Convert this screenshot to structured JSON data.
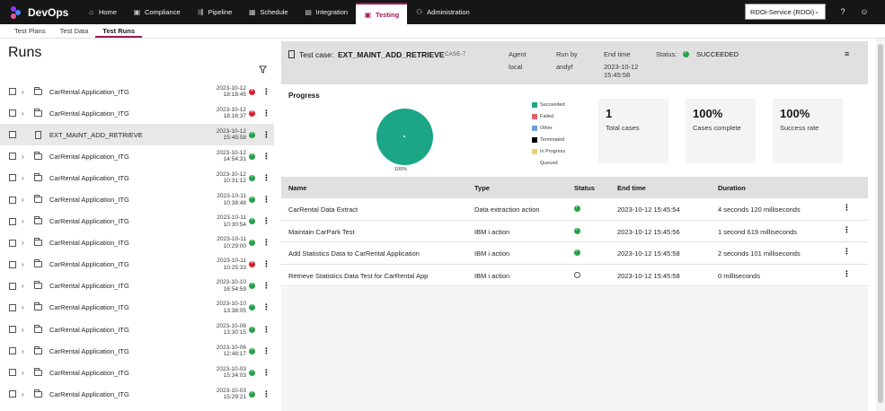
{
  "app": {
    "name": "DevOps"
  },
  "colors": {
    "topbar": "#161616",
    "accent": "#9f1853",
    "success": "#24a148",
    "failed": "#da1e28",
    "pie": "#1ba686"
  },
  "topnav": {
    "items": [
      {
        "label": "Home",
        "icon": "home-icon"
      },
      {
        "label": "Compliance",
        "icon": "compliance-icon"
      },
      {
        "label": "Pipeline",
        "icon": "pipeline-icon"
      },
      {
        "label": "Schedule",
        "icon": "calendar-icon"
      },
      {
        "label": "Integration",
        "icon": "integration-icon"
      },
      {
        "label": "Testing",
        "icon": "testing-icon",
        "active": true
      },
      {
        "label": "Administration",
        "icon": "admin-icon"
      }
    ],
    "service": "RDOi-Service (RDOi)"
  },
  "subtabs": [
    "Test Plans",
    "Test Data",
    "Test Runs"
  ],
  "runs": {
    "title": "Runs",
    "items": [
      {
        "name": "CarRental Application_ITG",
        "date": "2023-10-12",
        "time": "18:18:45",
        "status": "failed",
        "type": "folder"
      },
      {
        "name": "CarRental Application_ITG",
        "date": "2023-10-12",
        "time": "18:16:37",
        "status": "failed",
        "type": "folder"
      },
      {
        "name": "EXT_MAINT_ADD_RETRIEVE",
        "date": "2023-10-12",
        "time": "15:45:58",
        "status": "ok",
        "type": "case",
        "selected": true
      },
      {
        "name": "CarRental Application_ITG",
        "date": "2023-10-12",
        "time": "14:54:31",
        "status": "ok",
        "type": "folder"
      },
      {
        "name": "CarRental Application_ITG",
        "date": "2023-10-12",
        "time": "10:31:12",
        "status": "ok",
        "type": "folder"
      },
      {
        "name": "CarRental Application_ITG",
        "date": "2023-10-11",
        "time": "10:38:48",
        "status": "ok",
        "type": "folder"
      },
      {
        "name": "CarRental Application_ITG",
        "date": "2023-10-11",
        "time": "10:30:54",
        "status": "ok",
        "type": "folder"
      },
      {
        "name": "CarRental Application_ITG",
        "date": "2023-10-11",
        "time": "10:29:00",
        "status": "ok",
        "type": "folder"
      },
      {
        "name": "CarRental Application_ITG",
        "date": "2023-10-11",
        "time": "10:25:33",
        "status": "failed",
        "type": "folder"
      },
      {
        "name": "CarRental Application_ITG",
        "date": "2023-10-10",
        "time": "16:54:59",
        "status": "ok",
        "type": "folder"
      },
      {
        "name": "CarRental Application_ITG",
        "date": "2023-10-10",
        "time": "13:38:05",
        "status": "ok",
        "type": "folder"
      },
      {
        "name": "CarRental Application_ITG",
        "date": "2023-10-06",
        "time": "13:30:15",
        "status": "ok",
        "type": "folder"
      },
      {
        "name": "CarRental Application_ITG",
        "date": "2023-10-06",
        "time": "12:48:17",
        "status": "ok",
        "type": "folder"
      },
      {
        "name": "CarRental Application_ITG",
        "date": "2023-10-03",
        "time": "15:34:03",
        "status": "ok",
        "type": "folder"
      },
      {
        "name": "CarRental Application_ITG",
        "date": "2023-10-03",
        "time": "15:29:21",
        "status": "ok",
        "type": "folder"
      }
    ]
  },
  "case": {
    "label": "Test case:",
    "name": "EXT_MAINT_ADD_RETRIEVE",
    "id": "CASE-7",
    "agent_label": "Agent",
    "agent": "local",
    "runby_label": "Run by",
    "runby": "andyf",
    "endtime_label": "End time",
    "endtime_date": "2023-10-12",
    "endtime_time": "15:45:58",
    "status_label": "Status:",
    "status": "SUCCEEDED"
  },
  "progress": {
    "title": "Progress",
    "pie_label": "100%",
    "succeeded_fraction": 1.0,
    "legend": [
      {
        "label": "Succeeded",
        "color": "#1ba686"
      },
      {
        "label": "Failed",
        "color": "#e06070"
      },
      {
        "label": "Other",
        "color": "#6fa0dc"
      },
      {
        "label": "Terminated",
        "color": "#000000"
      },
      {
        "label": "In Progress",
        "color": "#e8d27a"
      },
      {
        "label": "Queued",
        "color": "#ffffff"
      }
    ],
    "tiles": [
      {
        "value": "1",
        "label": "Total cases"
      },
      {
        "value": "100%",
        "label": "Cases complete"
      },
      {
        "value": "100%",
        "label": "Success rate"
      }
    ]
  },
  "table": {
    "headers": [
      "Name",
      "Type",
      "Status",
      "End time",
      "Duration"
    ],
    "rows": [
      {
        "name": "CarRental Data Extract",
        "type": "Data extraction action",
        "status": "ok",
        "end": "2023-10-12 15:45:54",
        "duration": "4 seconds 120 milliseconds"
      },
      {
        "name": "Maintain CarPark Test",
        "type": "IBM i action",
        "status": "ok",
        "end": "2023-10-12 15:45:56",
        "duration": "1 second 619 milliseconds"
      },
      {
        "name": "Add Statistics Data to CarRental Application",
        "type": "IBM i action",
        "status": "ok",
        "end": "2023-10-12 15:45:58",
        "duration": "2 seconds 101 milliseconds"
      },
      {
        "name": "Retrieve Statistics Data Test for CarRental App",
        "type": "IBM i action",
        "status": "queued",
        "end": "2023-10-12 15:45:58",
        "duration": "0 milliseconds"
      }
    ]
  }
}
